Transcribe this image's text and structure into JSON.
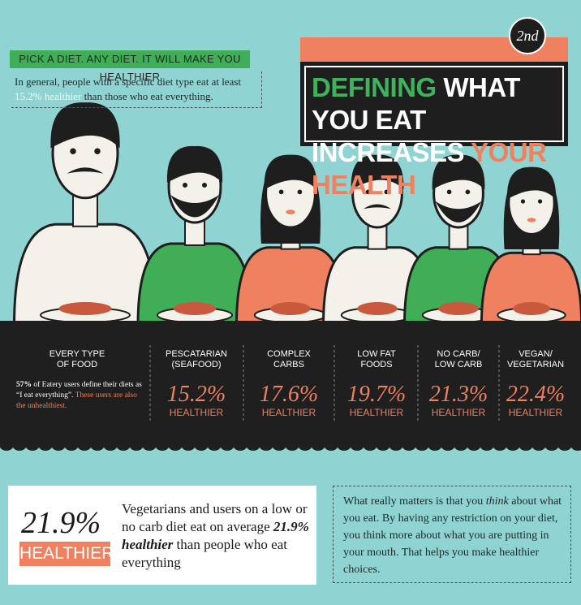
{
  "badge": "2nd",
  "intro": {
    "tag": "PICK A DIET. ANY DIET. IT WILL MAKE YOU HEALTHIER",
    "text_before": "In general, people with a specific diet type eat at least",
    "highlight": "15.2% healthier",
    "text_after": "than those who eat everything."
  },
  "title": {
    "line1": [
      "DEFINING",
      "WHAT YOU EAT"
    ],
    "line2": [
      "INCREASES",
      "YOUR HEALTH"
    ]
  },
  "columns": [
    {
      "name": [
        "EVERY TYPE",
        "OF FOOD"
      ],
      "note": {
        "bold": "57%",
        "text": "of Eatery users define their diets as “I eat everything”.",
        "highlight": "These users are also the unhealthiest."
      }
    },
    {
      "name": [
        "PESCATARIAN",
        "(SEAFOOD)"
      ],
      "value": "15.2%",
      "label": "HEALTHIER"
    },
    {
      "name": [
        "COMPLEX",
        "CARBS"
      ],
      "value": "17.6%",
      "label": "HEALTHIER"
    },
    {
      "name": [
        "LOW FAT",
        "FOODS"
      ],
      "value": "19.7%",
      "label": "HEALTHIER"
    },
    {
      "name": [
        "NO CARB/",
        "LOW CARB"
      ],
      "value": "21.3%",
      "label": "HEALTHIER"
    },
    {
      "name": [
        "VEGAN/",
        "VEGETARIAN"
      ],
      "value": "22.4%",
      "label": "HEALTHIER"
    }
  ],
  "summary": {
    "value": "21.9%",
    "label": "HEALTHIER",
    "text_before": "Vegetarians and users on a low or no carb diet eat on average",
    "emphasis": "21.9% healthier",
    "text_after": "than people who eat everything"
  },
  "note": {
    "text_before": "What really matters is that you",
    "emphasis": "think",
    "text_after": "about what you eat. By having any restriction on your diet, you think more about what you are putting in your mouth. That helps you make healthier choices."
  }
}
